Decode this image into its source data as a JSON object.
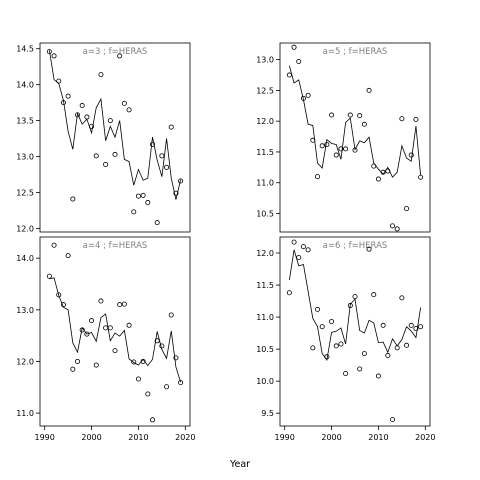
{
  "figure": {
    "xlabel": "Year"
  },
  "chart_data": [
    {
      "type": "scatter",
      "title": "a=3 ; f=HERAS",
      "xlim": [
        1989,
        2021
      ],
      "ylim": [
        11.95,
        14.58
      ],
      "xticks": [
        1990,
        2000,
        2010,
        2020
      ],
      "yticks": [
        12.0,
        12.5,
        13.0,
        13.5,
        14.0,
        14.5
      ],
      "grid": false,
      "series": [
        {
          "kind": "points",
          "x": [
            1991,
            1992,
            1993,
            1994,
            1995,
            1996,
            1997,
            1998,
            1999,
            2000,
            2001,
            2002,
            2003,
            2004,
            2005,
            2006,
            2007,
            2008,
            2009,
            2010,
            2011,
            2012,
            2013,
            2014,
            2015,
            2016,
            2017,
            2018,
            2019
          ],
          "y": [
            14.46,
            14.4,
            14.05,
            13.75,
            13.84,
            12.41,
            13.58,
            13.71,
            13.55,
            13.42,
            13.01,
            14.14,
            12.89,
            13.5,
            13.03,
            14.4,
            13.74,
            13.65,
            12.23,
            12.45,
            12.46,
            12.36,
            13.17,
            12.08,
            13.01,
            12.85,
            13.41,
            12.49,
            12.66
          ]
        },
        {
          "kind": "line",
          "x": [
            1991,
            1992,
            1993,
            1994,
            1995,
            1996,
            1997,
            1998,
            1999,
            2000,
            2001,
            2002,
            2003,
            2004,
            2005,
            2006,
            2007,
            2008,
            2009,
            2010,
            2011,
            2012,
            2013,
            2014,
            2015,
            2016,
            2017,
            2018,
            2019
          ],
          "y": [
            14.48,
            14.07,
            14.02,
            13.78,
            13.35,
            13.1,
            13.6,
            13.45,
            13.52,
            13.33,
            13.68,
            13.8,
            13.22,
            13.42,
            13.27,
            13.5,
            12.96,
            12.93,
            12.6,
            12.82,
            12.67,
            12.7,
            13.27,
            12.95,
            12.72,
            13.25,
            12.7,
            12.4,
            12.68
          ]
        }
      ]
    },
    {
      "type": "scatter",
      "title": "a=5 ; f=HERAS",
      "xlim": [
        1989,
        2021
      ],
      "ylim": [
        10.2,
        13.27
      ],
      "xticks": [
        1990,
        2000,
        2010,
        2020
      ],
      "yticks": [
        10.5,
        11.0,
        11.5,
        12.0,
        12.5,
        13.0
      ],
      "grid": false,
      "series": [
        {
          "kind": "points",
          "x": [
            1991,
            1992,
            1993,
            1994,
            1995,
            1996,
            1997,
            1998,
            1999,
            2000,
            2001,
            2002,
            2003,
            2004,
            2005,
            2006,
            2007,
            2008,
            2009,
            2010,
            2011,
            2012,
            2013,
            2014,
            2015,
            2016,
            2017,
            2018,
            2019
          ],
          "y": [
            12.75,
            13.2,
            12.97,
            12.37,
            12.42,
            11.69,
            11.1,
            11.6,
            11.62,
            12.1,
            11.45,
            11.55,
            11.55,
            12.1,
            11.53,
            12.09,
            11.95,
            12.5,
            11.27,
            11.06,
            11.17,
            11.19,
            10.3,
            10.25,
            12.04,
            10.58,
            11.45,
            12.03,
            11.09
          ]
        },
        {
          "kind": "line",
          "x": [
            1991,
            1992,
            1993,
            1994,
            1995,
            1996,
            1997,
            1998,
            1999,
            2000,
            2001,
            2002,
            2003,
            2004,
            2005,
            2006,
            2007,
            2008,
            2009,
            2010,
            2011,
            2012,
            2013,
            2014,
            2015,
            2016,
            2017,
            2018,
            2019
          ],
          "y": [
            12.9,
            12.62,
            12.67,
            12.35,
            11.95,
            11.93,
            11.32,
            11.24,
            11.7,
            11.64,
            11.62,
            11.38,
            11.98,
            12.05,
            11.54,
            11.68,
            11.65,
            11.74,
            11.32,
            11.22,
            11.14,
            11.25,
            11.09,
            11.17,
            11.6,
            11.4,
            11.35,
            11.92,
            11.12
          ]
        }
      ]
    },
    {
      "type": "scatter",
      "title": "a=4 ; f=HERAS",
      "xlim": [
        1989,
        2021
      ],
      "ylim": [
        10.75,
        14.41
      ],
      "xticks": [
        1990,
        2000,
        2010,
        2020
      ],
      "yticks": [
        11.0,
        12.0,
        13.0,
        14.0
      ],
      "grid": false,
      "series": [
        {
          "kind": "points",
          "x": [
            1991,
            1992,
            1993,
            1994,
            1995,
            1996,
            1997,
            1998,
            1999,
            2000,
            2001,
            2002,
            2003,
            2004,
            2005,
            2006,
            2007,
            2008,
            2009,
            2010,
            2011,
            2012,
            2013,
            2014,
            2015,
            2016,
            2017,
            2018,
            2019
          ],
          "y": [
            13.65,
            14.25,
            13.29,
            13.1,
            14.05,
            11.85,
            12.0,
            12.61,
            12.53,
            12.79,
            11.93,
            13.17,
            12.65,
            12.65,
            12.21,
            13.1,
            13.11,
            12.7,
            11.99,
            11.66,
            12.0,
            11.37,
            10.87,
            12.4,
            12.3,
            11.51,
            12.9,
            12.07,
            11.59
          ]
        },
        {
          "kind": "line",
          "x": [
            1991,
            1992,
            1993,
            1994,
            1995,
            1996,
            1997,
            1998,
            1999,
            2000,
            2001,
            2002,
            2003,
            2004,
            2005,
            2006,
            2007,
            2008,
            2009,
            2010,
            2011,
            2012,
            2013,
            2014,
            2015,
            2016,
            2017,
            2018,
            2019
          ],
          "y": [
            13.6,
            13.62,
            13.28,
            13.05,
            13.0,
            12.36,
            12.18,
            12.65,
            12.53,
            12.56,
            12.39,
            12.85,
            12.92,
            12.4,
            12.55,
            12.49,
            12.6,
            12.05,
            11.98,
            11.93,
            12.04,
            11.92,
            12.04,
            12.58,
            12.23,
            12.06,
            12.59,
            11.89,
            11.6
          ]
        }
      ]
    },
    {
      "type": "scatter",
      "title": "a=6 ; f=HERAS",
      "xlim": [
        1989,
        2021
      ],
      "ylim": [
        9.3,
        12.25
      ],
      "xticks": [
        1990,
        2000,
        2010,
        2020
      ],
      "yticks": [
        9.5,
        10.0,
        10.5,
        11.0,
        11.5,
        12.0
      ],
      "grid": false,
      "series": [
        {
          "kind": "points",
          "x": [
            1991,
            1992,
            1993,
            1994,
            1995,
            1996,
            1997,
            1998,
            1999,
            2000,
            2001,
            2002,
            2003,
            2004,
            2005,
            2006,
            2007,
            2008,
            2009,
            2010,
            2011,
            2012,
            2013,
            2014,
            2015,
            2016,
            2017,
            2018,
            2019
          ],
          "y": [
            11.38,
            12.17,
            11.93,
            12.1,
            12.05,
            10.52,
            11.12,
            10.85,
            10.38,
            10.93,
            10.55,
            10.58,
            10.12,
            11.18,
            11.32,
            10.19,
            10.43,
            12.06,
            11.35,
            10.08,
            10.87,
            10.4,
            9.4,
            10.52,
            11.3,
            10.56,
            10.87,
            10.82,
            10.85
          ]
        },
        {
          "kind": "line",
          "x": [
            1991,
            1992,
            1993,
            1994,
            1995,
            1996,
            1997,
            1998,
            1999,
            2000,
            2001,
            2002,
            2003,
            2004,
            2005,
            2006,
            2007,
            2008,
            2009,
            2010,
            2011,
            2012,
            2013,
            2014,
            2015,
            2016,
            2017,
            2018,
            2019
          ],
          "y": [
            11.58,
            12.05,
            11.8,
            11.82,
            11.4,
            10.98,
            10.85,
            10.43,
            10.33,
            10.76,
            10.78,
            10.83,
            10.58,
            11.2,
            11.28,
            10.79,
            10.75,
            10.95,
            10.91,
            10.6,
            10.61,
            10.45,
            10.66,
            10.55,
            10.65,
            10.85,
            10.78,
            10.68,
            11.15
          ]
        }
      ]
    }
  ]
}
